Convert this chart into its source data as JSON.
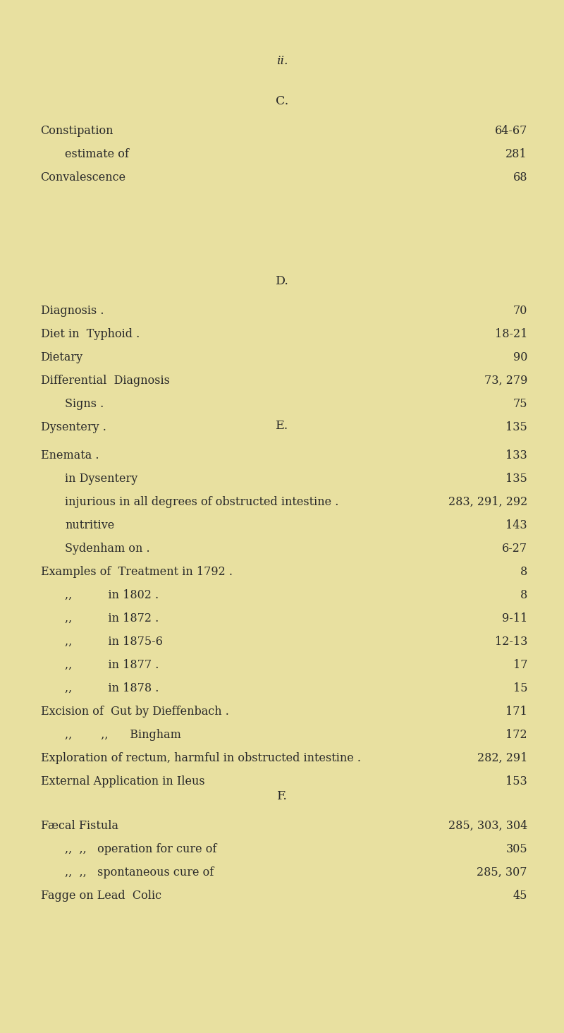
{
  "background_color": "#e8e0a0",
  "text_color": "#2a2a2a",
  "page_number": "ii.",
  "sections": [
    {
      "letter": "C.",
      "entries": [
        {
          "indent": 0,
          "label": "Constipation",
          "dots": true,
          "page": "64-67"
        },
        {
          "indent": 1,
          "label": "estimate of",
          "dots": true,
          "page": "281"
        },
        {
          "indent": 0,
          "label": "Convalescence",
          "dots": true,
          "page": "68"
        }
      ]
    },
    {
      "letter": "D.",
      "entries": [
        {
          "indent": 0,
          "label": "Diagnosis .",
          "dots": true,
          "page": "70"
        },
        {
          "indent": 0,
          "label": "Diet in  Typhoid .",
          "dots": true,
          "page": "18-21"
        },
        {
          "indent": 0,
          "label": "Dietary",
          "dots": true,
          "page": "90"
        },
        {
          "indent": 0,
          "label": "Differential  Diagnosis",
          "dots": true,
          "page": "73, 279"
        },
        {
          "indent": 1,
          "label": "Signs .",
          "dots": true,
          "page": "75"
        },
        {
          "indent": 0,
          "label": "Dysentery .",
          "dots": true,
          "page": "135"
        }
      ]
    },
    {
      "letter": "E.",
      "entries": [
        {
          "indent": 0,
          "label": "Enemata .",
          "dots": true,
          "page": "133"
        },
        {
          "indent": 1,
          "label": "in Dysentery",
          "dots": true,
          "page": "135"
        },
        {
          "indent": 1,
          "label": "injurious in all degrees of obstructed intestine .",
          "dots": false,
          "page": "283, 291, 292"
        },
        {
          "indent": 1,
          "label": "nutritive",
          "dots": true,
          "page": "143"
        },
        {
          "indent": 1,
          "label": "Sydenham on .",
          "dots": true,
          "page": "6-27"
        },
        {
          "indent": 0,
          "label": "Examples of  Treatment in 1792 .",
          "dots": true,
          "page": "8"
        },
        {
          "indent": 1,
          "label": ",,          in 1802 .",
          "dots": true,
          "page": "8"
        },
        {
          "indent": 1,
          "label": ",,          in 1872 .",
          "dots": true,
          "page": "9-11"
        },
        {
          "indent": 1,
          "label": ",,          in 1875-6",
          "dots": true,
          "page": "12-13"
        },
        {
          "indent": 1,
          "label": ",,          in 1877 .",
          "dots": true,
          "page": "17"
        },
        {
          "indent": 1,
          "label": ",,          in 1878 .",
          "dots": true,
          "page": "15"
        },
        {
          "indent": 0,
          "label": "Excision of  Gut by Dieffenbach .",
          "dots": true,
          "page": "171"
        },
        {
          "indent": 1,
          "label": ",,        ,,      Bingham",
          "dots": true,
          "page": "172"
        },
        {
          "indent": 0,
          "label": "Exploration of rectum, harmful in obstructed intestine .",
          "dots": false,
          "page": "282, 291"
        },
        {
          "indent": 0,
          "label": "External Application in Ileus",
          "dots": true,
          "page": "153"
        }
      ]
    },
    {
      "letter": "F.",
      "entries": [
        {
          "indent": 0,
          "label": "Fæcal Fistula",
          "dots": true,
          "page": "285, 303, 304"
        },
        {
          "indent": 1,
          "label": ",,  ,,   operation for cure of",
          "dots": true,
          "page": "305"
        },
        {
          "indent": 1,
          "label": ",,  ,,   spontaneous cure of",
          "dots": false,
          "page": "285, 307"
        },
        {
          "indent": 0,
          "label": "Fagge on Lead  Colic",
          "dots": true,
          "page": "45"
        }
      ]
    }
  ]
}
